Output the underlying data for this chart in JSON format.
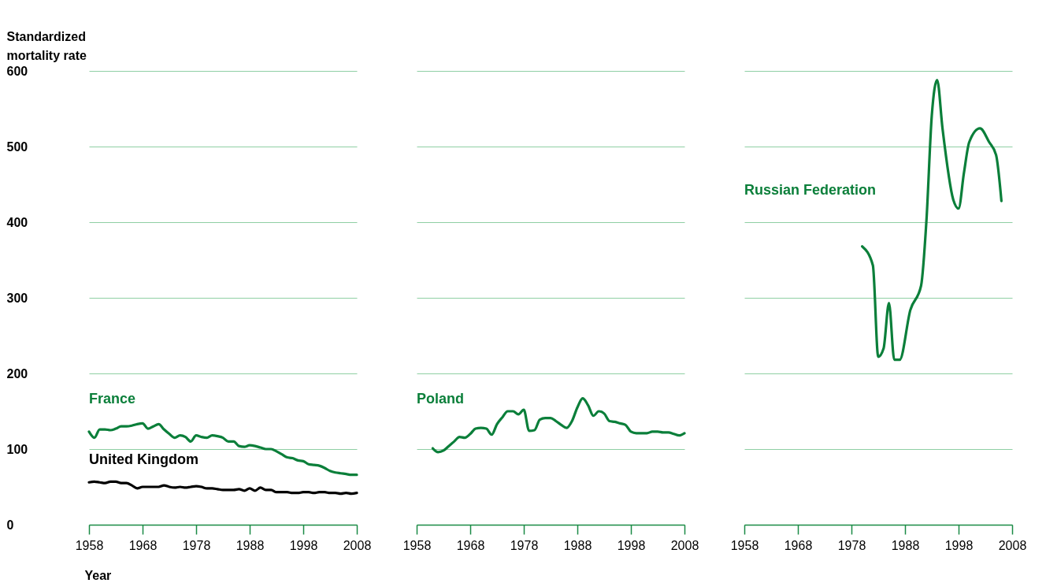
{
  "chart_data": [
    {
      "type": "line",
      "ylabel": "Standardized mortality rate",
      "xlabel": "Year",
      "xlim": [
        1958,
        2008
      ],
      "xticks": [
        1958,
        1968,
        1978,
        1988,
        1998,
        2008
      ],
      "ylim": [
        0,
        600
      ],
      "yticks": [
        0,
        100,
        200,
        300,
        400,
        500,
        600
      ],
      "grid": "y",
      "legend": false,
      "x": [
        1958,
        1959,
        1960,
        1961,
        1962,
        1963,
        1964,
        1965,
        1966,
        1967,
        1968,
        1969,
        1970,
        1971,
        1972,
        1973,
        1974,
        1975,
        1976,
        1977,
        1978,
        1979,
        1980,
        1981,
        1982,
        1983,
        1984,
        1985,
        1986,
        1987,
        1988,
        1989,
        1990,
        1991,
        1992,
        1993,
        1994,
        1995,
        1996,
        1997,
        1998,
        1999,
        2000,
        2001,
        2002,
        2003,
        2004,
        2005,
        2006,
        2007,
        2008
      ],
      "series": [
        {
          "name": "France",
          "color": "#0b7f3a",
          "values": [
            123,
            115,
            126,
            126,
            125,
            127,
            130,
            130,
            131,
            133,
            134,
            127,
            130,
            133,
            126,
            120,
            115,
            118,
            116,
            110,
            118,
            116,
            115,
            118,
            117,
            115,
            110,
            110,
            104,
            103,
            105,
            104,
            102,
            100,
            100,
            97,
            93,
            89,
            88,
            85,
            84,
            80,
            79,
            78,
            75,
            71,
            69,
            68,
            67,
            66,
            66
          ]
        },
        {
          "name": "United Kingdom",
          "color": "#000000",
          "values": [
            56,
            57,
            56,
            55,
            57,
            57,
            55,
            55,
            52,
            48,
            50,
            50,
            50,
            50,
            52,
            50,
            49,
            50,
            49,
            50,
            51,
            50,
            48,
            48,
            47,
            46,
            46,
            46,
            47,
            45,
            48,
            45,
            49,
            46,
            46,
            43,
            43,
            43,
            42,
            42,
            43,
            43,
            42,
            43,
            43,
            42,
            42,
            41,
            42,
            41,
            42
          ]
        }
      ]
    },
    {
      "type": "line",
      "xlim": [
        1958,
        2008
      ],
      "xticks": [
        1958,
        1968,
        1978,
        1988,
        1998,
        2008
      ],
      "ylim": [
        0,
        600
      ],
      "yticks": [
        0,
        100,
        200,
        300,
        400,
        500,
        600
      ],
      "grid": "y",
      "legend": false,
      "tick_labels": "x",
      "x": [
        1961,
        1962,
        1963,
        1964,
        1965,
        1966,
        1967,
        1968,
        1969,
        1970,
        1971,
        1972,
        1973,
        1974,
        1975,
        1976,
        1977,
        1978,
        1979,
        1980,
        1981,
        1982,
        1983,
        1984,
        1985,
        1986,
        1987,
        1988,
        1989,
        1990,
        1991,
        1992,
        1993,
        1994,
        1995,
        1996,
        1997,
        1998,
        1999,
        2000,
        2001,
        2002,
        2003,
        2004,
        2005,
        2006,
        2007,
        2008
      ],
      "series": [
        {
          "name": "Poland",
          "color": "#0b7f3a",
          "values": [
            101,
            96,
            98,
            104,
            110,
            116,
            115,
            120,
            127,
            128,
            127,
            119,
            133,
            142,
            150,
            150,
            146,
            152,
            124,
            125,
            139,
            141,
            141,
            137,
            132,
            128,
            137,
            155,
            167,
            158,
            144,
            150,
            147,
            137,
            136,
            134,
            132,
            123,
            121,
            121,
            121,
            123,
            123,
            122,
            122,
            120,
            118,
            121
          ]
        }
      ]
    },
    {
      "type": "line",
      "xlim": [
        1958,
        2008
      ],
      "xticks": [
        1958,
        1968,
        1978,
        1988,
        1998,
        2008
      ],
      "ylim": [
        0,
        600
      ],
      "yticks": [
        0,
        100,
        200,
        300,
        400,
        500,
        600
      ],
      "grid": "y",
      "legend": false,
      "tick_labels": "x",
      "x": [
        1980,
        1982,
        1983,
        1984,
        1985,
        1986,
        1987,
        1989,
        1991,
        1992,
        1993,
        1994,
        1995,
        1997,
        1998,
        1999,
        2000,
        2002,
        2003.7,
        2005,
        2006
      ],
      "series": [
        {
          "name": "Russian Federation",
          "color": "#0b7f3a",
          "values": [
            368,
            343,
            222,
            233,
            293,
            218,
            218,
            284,
            316,
            402,
            541,
            588,
            524,
            430,
            418,
            465,
            506,
            524,
            506,
            489,
            428
          ]
        }
      ]
    }
  ]
}
